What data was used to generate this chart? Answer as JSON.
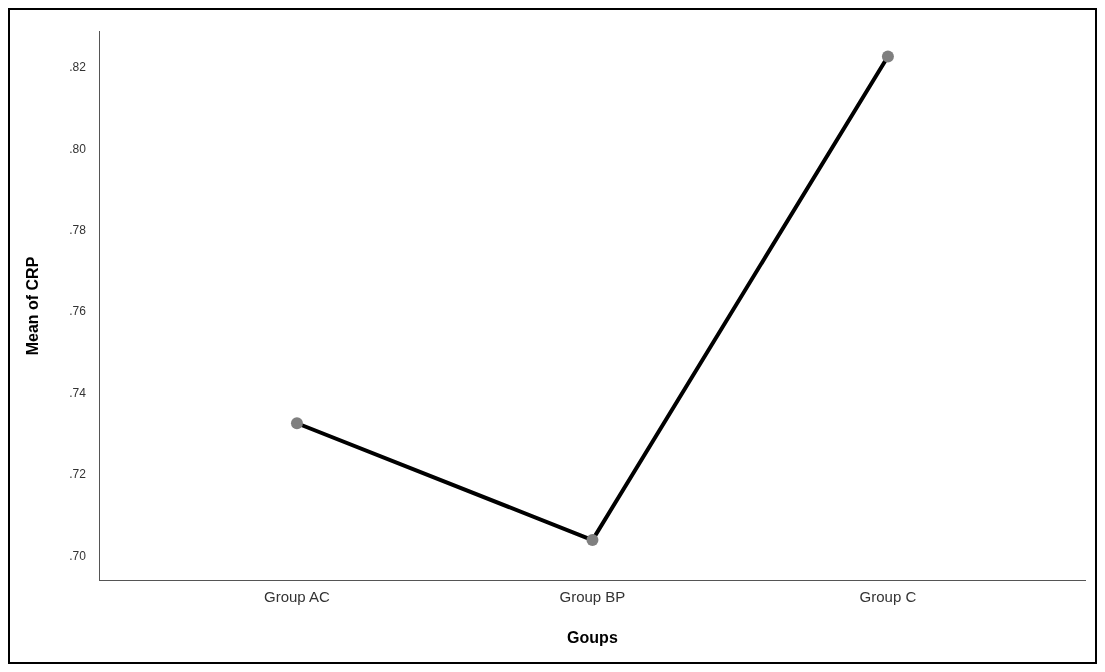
{
  "chart_data": {
    "type": "line",
    "xlabel": "Goups",
    "ylabel": "Mean of CRP",
    "categories": [
      "Group AC",
      "Group BP",
      "Group C"
    ],
    "series": [
      {
        "color": "#000000",
        "values": [
          0.7327,
          0.704,
          0.8228
        ]
      }
    ],
    "ylim": [
      0.694,
      0.829
    ],
    "yticks": [
      {
        "value": 0.7,
        "label": ".70"
      },
      {
        "value": 0.72,
        "label": ".72"
      },
      {
        "value": 0.74,
        "label": ".74"
      },
      {
        "value": 0.76,
        "label": ".76"
      },
      {
        "value": 0.78,
        "label": ".78"
      },
      {
        "value": 0.8,
        "label": ".80"
      },
      {
        "value": 0.82,
        "label": ".82"
      }
    ],
    "marker": "circle",
    "line_style": "solid",
    "grid": false,
    "legend": false
  }
}
